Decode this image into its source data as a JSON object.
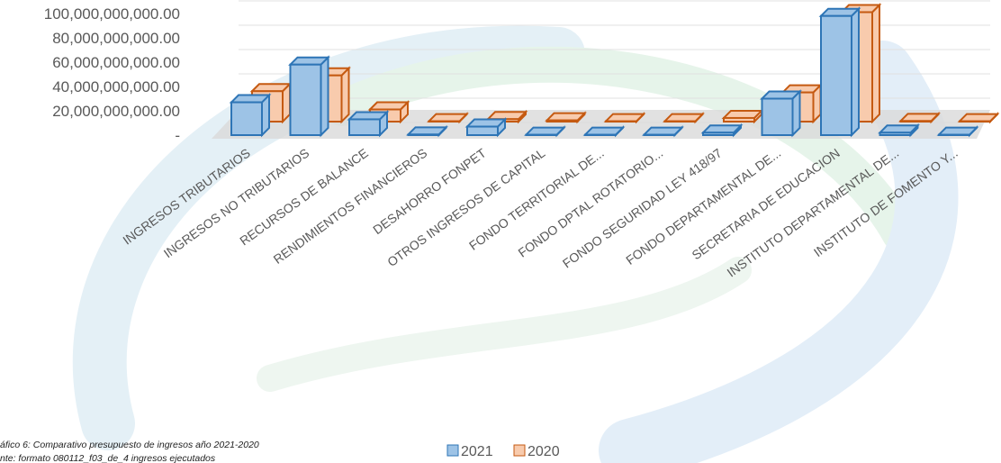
{
  "chart_data": {
    "type": "bar3d",
    "categories": [
      "INGRESOS TRIBUTARIOS",
      "INGRESOS NO TRIBUTARIOS",
      "RECURSOS DE BALANCE",
      "RENDIMIENTOS FINANCIEROS",
      "DESAHORRO FONPET",
      "OTROS INGRESOS DE CAPITAL",
      "FONDO TERRITORIAL DE...",
      "FONDO DPTAL ROTATORIO...",
      "FONDO SEGURIDAD LEY 418/97",
      "FONDO DEPARTAMENTAL DE...",
      "SECRETARIA DE EDUCACION",
      "INSTITUTO DEPARTAMENTAL DE...",
      "INSTITUTO DE FOMENTO Y..."
    ],
    "series": [
      {
        "name": "2021",
        "color": "#9dc3e6",
        "edge": "#2e75b6",
        "values": [
          27000000000,
          58000000000,
          13000000000,
          500000000,
          7000000000,
          300000000,
          300000000,
          300000000,
          2000000000,
          30000000000,
          98000000000,
          2000000000,
          300000000
        ]
      },
      {
        "name": "2020",
        "color": "#f8cbad",
        "edge": "#c55a11",
        "values": [
          25000000000,
          38000000000,
          10000000000,
          300000000,
          2000000000,
          1000000000,
          300000000,
          300000000,
          3000000000,
          24000000000,
          90000000000,
          500000000,
          300000000
        ]
      }
    ],
    "ylim": [
      0,
      100000000000
    ],
    "yticks": [
      {
        "value": 0,
        "label": "-"
      },
      {
        "value": 20000000000,
        "label": "20,000,000,000.00"
      },
      {
        "value": 40000000000,
        "label": "40,000,000,000.00"
      },
      {
        "value": 60000000000,
        "label": "60,000,000,000.00"
      },
      {
        "value": 80000000000,
        "label": "80,000,000,000.00"
      },
      {
        "value": 100000000000,
        "label": "100,000,000,000.00"
      }
    ],
    "grid": true,
    "caption": [
      "áfico 6: Comparativo presupuesto de ingresos año 2021-2020",
      "nte: formato 080112_f03_de_4 ingresos ejecutados"
    ]
  }
}
